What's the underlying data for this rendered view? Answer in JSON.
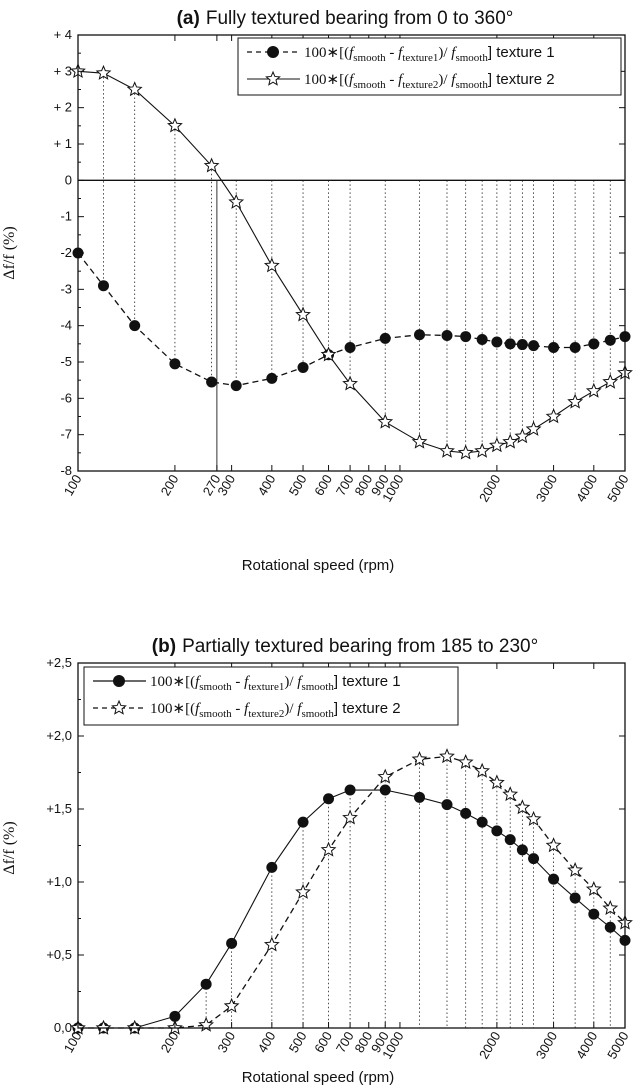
{
  "chart_data": [
    {
      "type": "line",
      "panel_label": "(a)",
      "title": "Fully textured bearing from 0 to 360°",
      "xlabel": "Rotational speed (rpm)",
      "ylabel": "Δf/f (%)",
      "xscale": "log",
      "xlim": [
        100,
        5000
      ],
      "ylim": [
        -8,
        4
      ],
      "x_ticks": [
        100,
        200,
        270,
        300,
        400,
        500,
        600,
        700,
        800,
        900,
        1000,
        2000,
        3000,
        4000,
        5000
      ],
      "x_tick_labels": [
        "100",
        "200",
        "270",
        "300",
        "400",
        "500",
        "600",
        "700",
        "800",
        "900",
        "1000",
        "2000",
        "3000",
        "4000",
        "5000"
      ],
      "y_ticks": [
        4,
        3,
        2,
        1,
        0,
        -1,
        -2,
        -3,
        -4,
        -5,
        -6,
        -7,
        -8
      ],
      "y_tick_labels": [
        "+ 4",
        "+ 3",
        "+ 2",
        "+ 1",
        "0",
        "-1",
        "-2",
        "-3",
        "-4",
        "-5",
        "-6",
        "-7",
        "-8"
      ],
      "zero_line": true,
      "marker_line_x": 270,
      "legend_position": "top-right",
      "series": [
        {
          "name": "100*[(f_smooth - f_texture1)/ f_smooth] texture 1",
          "legend_parts": [
            "100∗[(",
            "f",
            "smooth",
            " - ",
            "f",
            "texture1",
            ")/ ",
            "f",
            "smooth",
            "] texture 1"
          ],
          "marker": "circle",
          "line": "dashed",
          "x": [
            100,
            120,
            150,
            200,
            260,
            310,
            400,
            500,
            600,
            700,
            900,
            1150,
            1400,
            1600,
            1800,
            2000,
            2200,
            2400,
            2600,
            3000,
            3500,
            4000,
            4500,
            5000
          ],
          "y": [
            -2.0,
            -2.9,
            -4.0,
            -5.05,
            -5.55,
            -5.65,
            -5.45,
            -5.15,
            -4.8,
            -4.6,
            -4.35,
            -4.25,
            -4.27,
            -4.3,
            -4.38,
            -4.45,
            -4.5,
            -4.52,
            -4.55,
            -4.6,
            -4.6,
            -4.5,
            -4.4,
            -4.3
          ]
        },
        {
          "name": "100*[(f_smooth - f_texture2)/ f_smooth] texture 2",
          "legend_parts": [
            "100∗[(",
            "f",
            "smooth",
            " - ",
            "f",
            "texture2",
            ")/ ",
            "f",
            "smooth",
            "] texture 2"
          ],
          "marker": "star",
          "line": "solid",
          "x": [
            100,
            120,
            150,
            200,
            260,
            310,
            400,
            500,
            600,
            700,
            900,
            1150,
            1400,
            1600,
            1800,
            2000,
            2200,
            2400,
            2600,
            3000,
            3500,
            4000,
            4500,
            5000
          ],
          "y": [
            3.0,
            2.95,
            2.5,
            1.5,
            0.4,
            -0.6,
            -2.35,
            -3.7,
            -4.8,
            -5.6,
            -6.65,
            -7.2,
            -7.45,
            -7.5,
            -7.45,
            -7.3,
            -7.2,
            -7.05,
            -6.85,
            -6.5,
            -6.1,
            -5.8,
            -5.55,
            -5.3
          ]
        }
      ]
    },
    {
      "type": "line",
      "panel_label": "(b)",
      "title": "Partially textured bearing from 185 to 230°",
      "xlabel": "Rotational speed (rpm)",
      "ylabel": "Δf/f (%)",
      "xscale": "log",
      "xlim": [
        100,
        5000
      ],
      "ylim": [
        0,
        2.5
      ],
      "x_ticks": [
        100,
        200,
        300,
        400,
        500,
        600,
        700,
        800,
        900,
        1000,
        2000,
        3000,
        4000,
        5000
      ],
      "x_tick_labels": [
        "100",
        "200",
        "300",
        "400",
        "500",
        "600",
        "700",
        "800",
        "900",
        "1000",
        "2000",
        "3000",
        "4000",
        "5000"
      ],
      "y_ticks": [
        2.5,
        2.0,
        1.5,
        1.0,
        0.5,
        0.0
      ],
      "y_tick_labels": [
        "+2,5",
        "+2,0",
        "+1,5",
        "+1,0",
        "+0,5",
        "0,0"
      ],
      "legend_position": "top-left",
      "series": [
        {
          "name": "100*[(f_smooth - f_texture1)/ f_smooth] texture 1",
          "legend_parts": [
            "100∗[(",
            "f",
            "smooth",
            " - ",
            "f",
            "texture1",
            ")/ ",
            "f",
            "smooth",
            "] texture 1"
          ],
          "marker": "circle",
          "line": "solid",
          "x": [
            100,
            120,
            150,
            200,
            250,
            300,
            400,
            500,
            600,
            700,
            900,
            1150,
            1400,
            1600,
            1800,
            2000,
            2200,
            2400,
            2600,
            3000,
            3500,
            4000,
            4500,
            5000
          ],
          "y": [
            0.0,
            0.0,
            0.0,
            0.08,
            0.3,
            0.58,
            1.1,
            1.41,
            1.57,
            1.63,
            1.63,
            1.58,
            1.53,
            1.47,
            1.41,
            1.35,
            1.29,
            1.22,
            1.16,
            1.02,
            0.89,
            0.78,
            0.69,
            0.6
          ]
        },
        {
          "name": "100*[(f_smooth - f_texture2)/ f_smooth] texture 2",
          "legend_parts": [
            "100∗[(",
            "f",
            "smooth",
            " - ",
            "f",
            "texture2",
            ")/ ",
            "f",
            "smooth",
            "] texture 2"
          ],
          "marker": "star",
          "line": "dashed",
          "x": [
            100,
            120,
            150,
            200,
            250,
            300,
            400,
            500,
            600,
            700,
            900,
            1150,
            1400,
            1600,
            1800,
            2000,
            2200,
            2400,
            2600,
            3000,
            3500,
            4000,
            4500,
            5000
          ],
          "y": [
            0.0,
            0.0,
            0.0,
            0.0,
            0.02,
            0.15,
            0.57,
            0.93,
            1.22,
            1.44,
            1.72,
            1.84,
            1.86,
            1.82,
            1.76,
            1.68,
            1.6,
            1.51,
            1.43,
            1.25,
            1.08,
            0.95,
            0.82,
            0.72
          ]
        }
      ]
    }
  ]
}
